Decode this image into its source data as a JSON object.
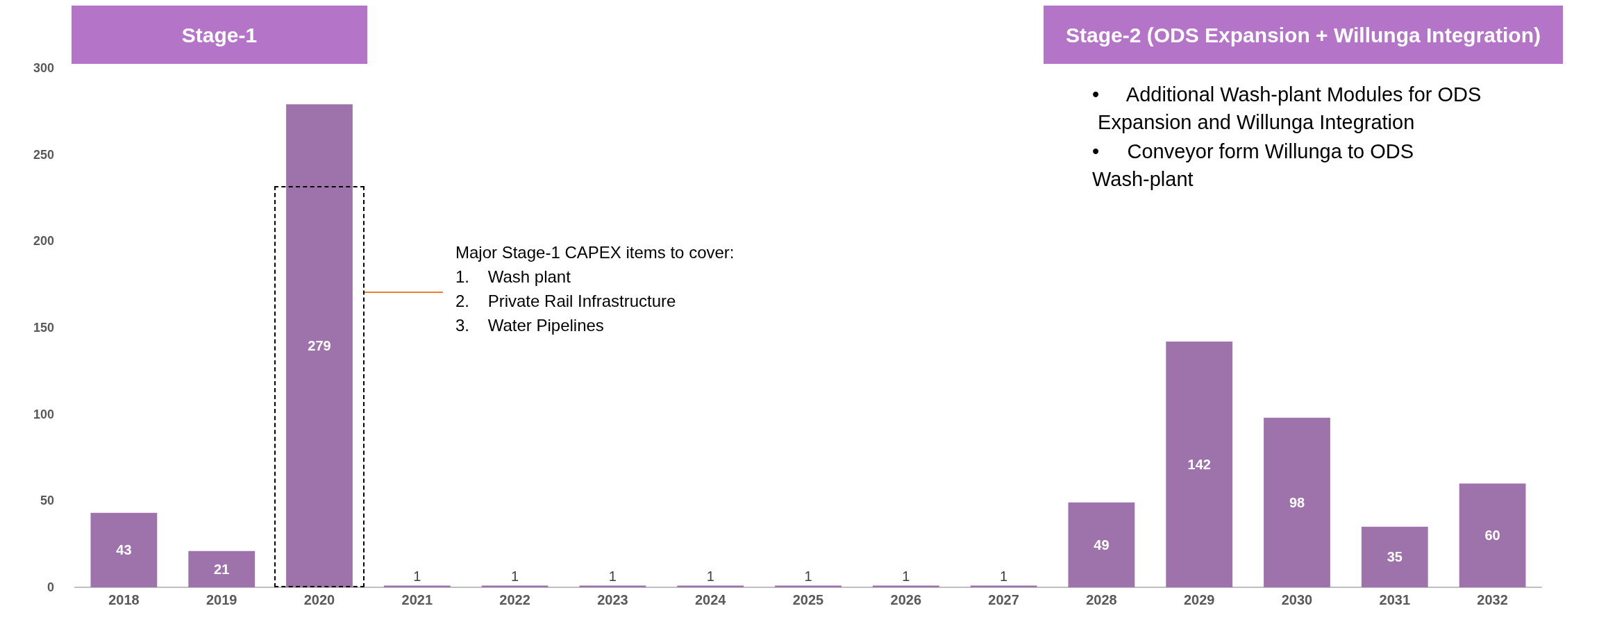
{
  "chart_data": {
    "type": "bar",
    "categories": [
      "2018",
      "2019",
      "2020",
      "2021",
      "2022",
      "2023",
      "2024",
      "2025",
      "2026",
      "2027",
      "2028",
      "2029",
      "2030",
      "2031",
      "2032"
    ],
    "values": [
      43,
      21,
      279,
      1,
      1,
      1,
      1,
      1,
      1,
      1,
      49,
      142,
      98,
      35,
      60
    ],
    "color": "#9e72ab",
    "ylim": [
      0,
      300
    ],
    "yticks": [
      0,
      50,
      100,
      150,
      200,
      250,
      300
    ],
    "grid": false,
    "data_labels": true,
    "annotations": [
      "Stage-1",
      "Stage-2 (ODS Expansion + Willunga Integration)",
      "•     Additional Wash-plant Modules for ODS Expansion and Willunga Integration",
      "•     Conveyor form Willunga to ODS Wash-plant",
      "Major Stage-1 CAPEX items to cover:\n1.    Wash plant\n2.    Private Rail Infrastructure\n3.    Water Pipelines"
    ]
  }
}
